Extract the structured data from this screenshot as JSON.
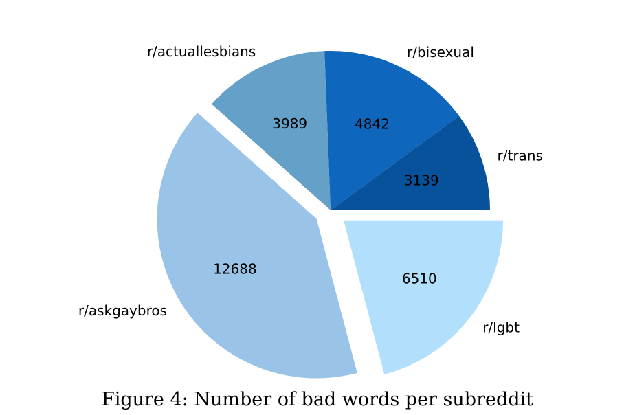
{
  "figure": {
    "caption": "Figure 4: Number of bad words per subreddit"
  },
  "chart_data": {
    "type": "pie",
    "title": "",
    "slices": [
      {
        "label": "r/trans",
        "value": 3139,
        "color": "#08529b",
        "exploded": false
      },
      {
        "label": "r/bisexual",
        "value": 4842,
        "color": "#0f66bd",
        "exploded": false
      },
      {
        "label": "r/actuallesbians",
        "value": 3989,
        "color": "#65a0c9",
        "exploded": false
      },
      {
        "label": "r/askgaybros",
        "value": 12688,
        "color": "#99c4e8",
        "exploded": true
      },
      {
        "label": "r/lgbt",
        "value": 6510,
        "color": "#b2e0fc",
        "exploded": true
      }
    ],
    "start_angle_deg": 0,
    "direction": "counterclockwise",
    "legend": "none"
  }
}
